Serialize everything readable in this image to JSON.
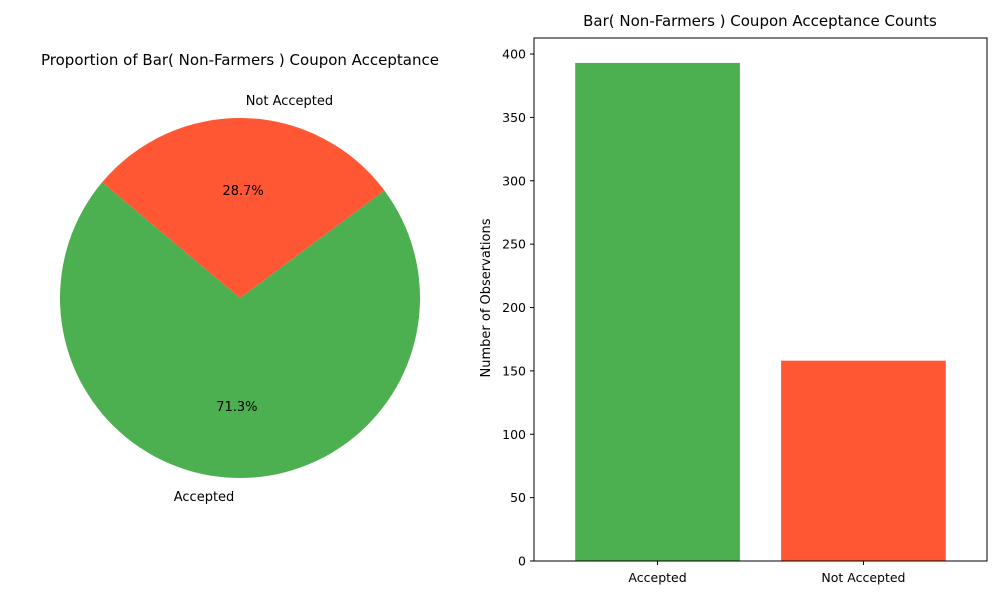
{
  "chart_data": [
    {
      "type": "pie",
      "title": "Proportion of Bar( Non-Farmers ) Coupon Acceptance",
      "slices": [
        {
          "label": "Accepted",
          "value": 71.3,
          "pct_label": "71.3%",
          "color": "#4CAF50"
        },
        {
          "label": "Not Accepted",
          "value": 28.7,
          "pct_label": "28.7%",
          "color": "#FF5733"
        }
      ],
      "start_angle_deg": 140,
      "direction": "counterclockwise"
    },
    {
      "type": "bar",
      "title": "Bar( Non-Farmers ) Coupon Acceptance Counts",
      "categories": [
        "Accepted",
        "Not Accepted"
      ],
      "values": [
        393,
        158
      ],
      "colors": [
        "#4CAF50",
        "#FF5733"
      ],
      "xlabel": "",
      "ylabel": "Number of Observations",
      "ylim": [
        0,
        412.65
      ],
      "yticks": [
        0,
        50,
        100,
        150,
        200,
        250,
        300,
        350,
        400
      ],
      "grid": false
    }
  ]
}
